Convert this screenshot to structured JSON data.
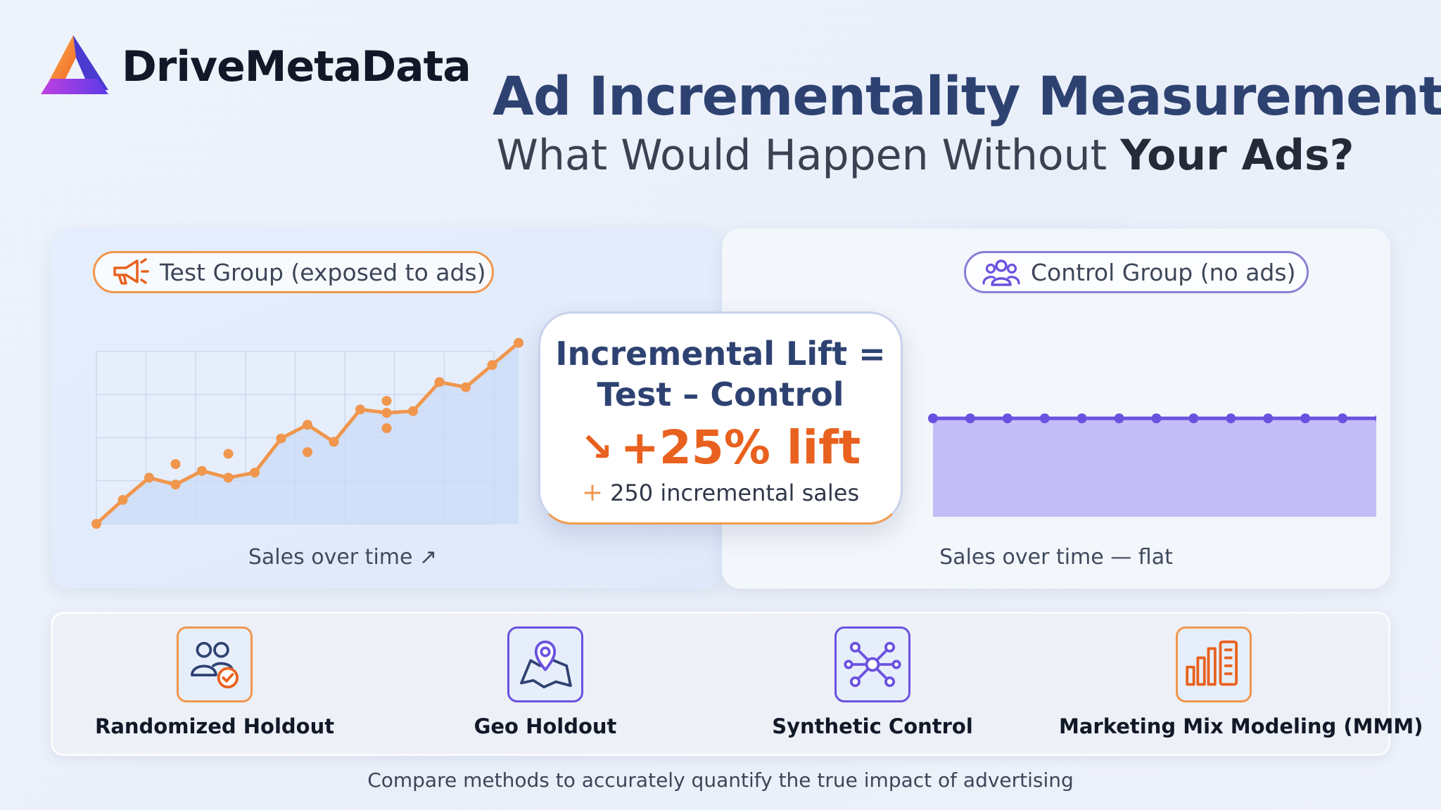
{
  "brand": {
    "name": "DriveMetaData"
  },
  "headline": {
    "title": "Ad Incrementality Measurement:",
    "subtitle_pre": "What Would Happen Without ",
    "subtitle_bold": "Your Ads?"
  },
  "test_group": {
    "pill": "Test Group (exposed to ads)",
    "icon": "megaphone-icon",
    "caption": "Sales over time ↗"
  },
  "control_group": {
    "pill": "Control Group (no ads)",
    "icon": "users-icon",
    "caption": "Sales over time — flat"
  },
  "lift": {
    "formula_line1": "Incremental Lift =",
    "formula_line2": "Test – Control",
    "arrow": "↘",
    "value": "+25% lift",
    "plus": "+",
    "sales": "250 incremental sales"
  },
  "methods": [
    {
      "label": "Randomized Holdout",
      "icon": "users-check-icon"
    },
    {
      "label": "Geo Holdout",
      "icon": "map-pin-icon"
    },
    {
      "label": "Synthetic Control",
      "icon": "network-icon"
    },
    {
      "label": "Marketing Mix Modeling (MMM)",
      "icon": "bar-chart-icon"
    }
  ],
  "footer": "Compare methods to accurately quantify the true impact of advertising",
  "colors": {
    "accent_orange": "#f0964d",
    "accent_purple": "#6a52e0",
    "title_navy": "#2e4272",
    "lift_orange": "#e8611e"
  },
  "chart_data": [
    {
      "type": "line",
      "title": "",
      "xlabel": "Sales over time",
      "ylabel": "",
      "grid": true,
      "series": [
        {
          "values": [
            0,
            14,
            27,
            23,
            31,
            27,
            30,
            50,
            58,
            48,
            67,
            65,
            66,
            83,
            80,
            93,
            106
          ]
        }
      ],
      "scatter": [
        {
          "x": 3,
          "y": 35
        },
        {
          "x": 5,
          "y": 41
        },
        {
          "x": 8,
          "y": 42
        },
        {
          "x": 11,
          "y": 72
        },
        {
          "x": 11,
          "y": 56
        }
      ],
      "ylim": [
        0,
        105
      ]
    },
    {
      "type": "area",
      "title": "",
      "xlabel": "Sales over time — flat",
      "ylabel": "",
      "grid": false,
      "series": [
        {
          "values": [
            50,
            50,
            50,
            50,
            50,
            50,
            50,
            50,
            50,
            50,
            50,
            50,
            50
          ]
        }
      ],
      "ylim": [
        0,
        100
      ]
    }
  ]
}
